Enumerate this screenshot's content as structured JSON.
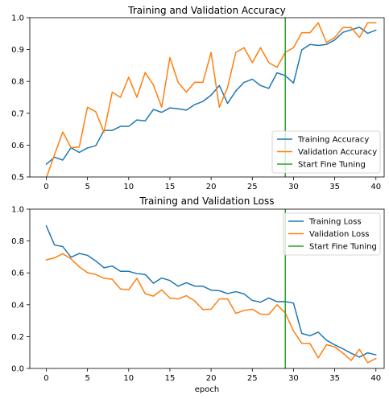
{
  "chart_data": [
    {
      "type": "line",
      "title": "Training and Validation Accuracy",
      "xlabel": "",
      "ylabel": "",
      "xlim": [
        -2,
        41
      ],
      "ylim": [
        0.5,
        1.0
      ],
      "xticks": [
        0,
        5,
        10,
        15,
        20,
        25,
        30,
        35,
        40
      ],
      "yticks": [
        0.5,
        0.6,
        0.7,
        0.8,
        0.9,
        1.0
      ],
      "ytick_labels": [
        "0.5",
        "0.6",
        "0.7",
        "0.8",
        "0.9",
        "1.0"
      ],
      "grid": false,
      "legend_position": "lower-right",
      "vline": {
        "name": "Start Fine Tuning",
        "x": 29,
        "color": "#2ca02c"
      },
      "series": [
        {
          "name": "Training Accuracy",
          "color": "#1f77b4",
          "x": [
            0,
            1,
            2,
            3,
            4,
            5,
            6,
            7,
            8,
            9,
            10,
            11,
            12,
            13,
            14,
            15,
            16,
            17,
            18,
            19,
            20,
            21,
            22,
            23,
            24,
            25,
            26,
            27,
            28,
            29,
            30,
            31,
            32,
            33,
            34,
            35,
            36,
            37,
            38,
            39,
            40
          ],
          "values": [
            0.54,
            0.562,
            0.553,
            0.592,
            0.577,
            0.591,
            0.598,
            0.646,
            0.646,
            0.659,
            0.659,
            0.679,
            0.676,
            0.712,
            0.703,
            0.717,
            0.714,
            0.71,
            0.727,
            0.737,
            0.757,
            0.787,
            0.731,
            0.77,
            0.797,
            0.807,
            0.787,
            0.778,
            0.827,
            0.818,
            0.795,
            0.899,
            0.916,
            0.913,
            0.916,
            0.93,
            0.954,
            0.962,
            0.97,
            0.951,
            0.961
          ]
        },
        {
          "name": "Validation Accuracy",
          "color": "#ff7f0e",
          "x": [
            0,
            1,
            2,
            3,
            4,
            5,
            6,
            7,
            8,
            9,
            10,
            11,
            12,
            13,
            14,
            15,
            16,
            17,
            18,
            19,
            20,
            21,
            22,
            23,
            24,
            25,
            26,
            27,
            28,
            29,
            30,
            31,
            32,
            33,
            34,
            35,
            36,
            37,
            38,
            39,
            40
          ],
          "values": [
            0.497,
            0.57,
            0.641,
            0.592,
            0.594,
            0.719,
            0.705,
            0.641,
            0.766,
            0.75,
            0.813,
            0.75,
            0.828,
            0.789,
            0.719,
            0.875,
            0.797,
            0.766,
            0.797,
            0.797,
            0.891,
            0.719,
            0.781,
            0.891,
            0.906,
            0.859,
            0.906,
            0.859,
            0.844,
            0.891,
            0.906,
            0.953,
            0.953,
            0.984,
            0.922,
            0.938,
            0.969,
            0.969,
            0.938,
            0.984,
            0.984
          ]
        }
      ]
    },
    {
      "type": "line",
      "title": "Training and Validation Loss",
      "xlabel": "epoch",
      "ylabel": "",
      "xlim": [
        -2,
        41
      ],
      "ylim": [
        0.0,
        1.0
      ],
      "xticks": [
        0,
        5,
        10,
        15,
        20,
        25,
        30,
        35,
        40
      ],
      "yticks": [
        0.0,
        0.2,
        0.4,
        0.6,
        0.8,
        1.0
      ],
      "ytick_labels": [
        "0.0",
        "0.2",
        "0.4",
        "0.6",
        "0.8",
        "1.0"
      ],
      "grid": false,
      "legend_position": "upper-right",
      "vline": {
        "name": "Start Fine Tuning",
        "x": 29,
        "color": "#2ca02c"
      },
      "series": [
        {
          "name": "Training Loss",
          "color": "#1f77b4",
          "x": [
            0,
            1,
            2,
            3,
            4,
            5,
            6,
            7,
            8,
            9,
            10,
            11,
            12,
            13,
            14,
            15,
            16,
            17,
            18,
            19,
            20,
            21,
            22,
            23,
            24,
            25,
            26,
            27,
            28,
            29,
            30,
            31,
            32,
            33,
            34,
            35,
            36,
            37,
            38,
            39,
            40
          ],
          "values": [
            0.895,
            0.775,
            0.765,
            0.698,
            0.722,
            0.71,
            0.675,
            0.632,
            0.643,
            0.61,
            0.61,
            0.595,
            0.59,
            0.535,
            0.568,
            0.552,
            0.516,
            0.538,
            0.517,
            0.516,
            0.492,
            0.488,
            0.47,
            0.482,
            0.468,
            0.427,
            0.416,
            0.442,
            0.419,
            0.42,
            0.41,
            0.22,
            0.205,
            0.228,
            0.177,
            0.148,
            0.123,
            0.095,
            0.071,
            0.098,
            0.085
          ]
        },
        {
          "name": "Validation Loss",
          "color": "#ff7f0e",
          "x": [
            0,
            1,
            2,
            3,
            4,
            5,
            6,
            7,
            8,
            9,
            10,
            11,
            12,
            13,
            14,
            15,
            16,
            17,
            18,
            19,
            20,
            21,
            22,
            23,
            24,
            25,
            26,
            27,
            28,
            29,
            30,
            31,
            32,
            33,
            34,
            35,
            36,
            37,
            38,
            39,
            40
          ],
          "values": [
            0.682,
            0.694,
            0.72,
            0.688,
            0.638,
            0.601,
            0.59,
            0.566,
            0.56,
            0.499,
            0.494,
            0.566,
            0.469,
            0.454,
            0.493,
            0.442,
            0.436,
            0.457,
            0.424,
            0.37,
            0.372,
            0.436,
            0.436,
            0.346,
            0.364,
            0.372,
            0.341,
            0.339,
            0.4,
            0.348,
            0.235,
            0.158,
            0.156,
            0.066,
            0.149,
            0.135,
            0.096,
            0.05,
            0.12,
            0.036,
            0.063
          ]
        }
      ]
    }
  ]
}
